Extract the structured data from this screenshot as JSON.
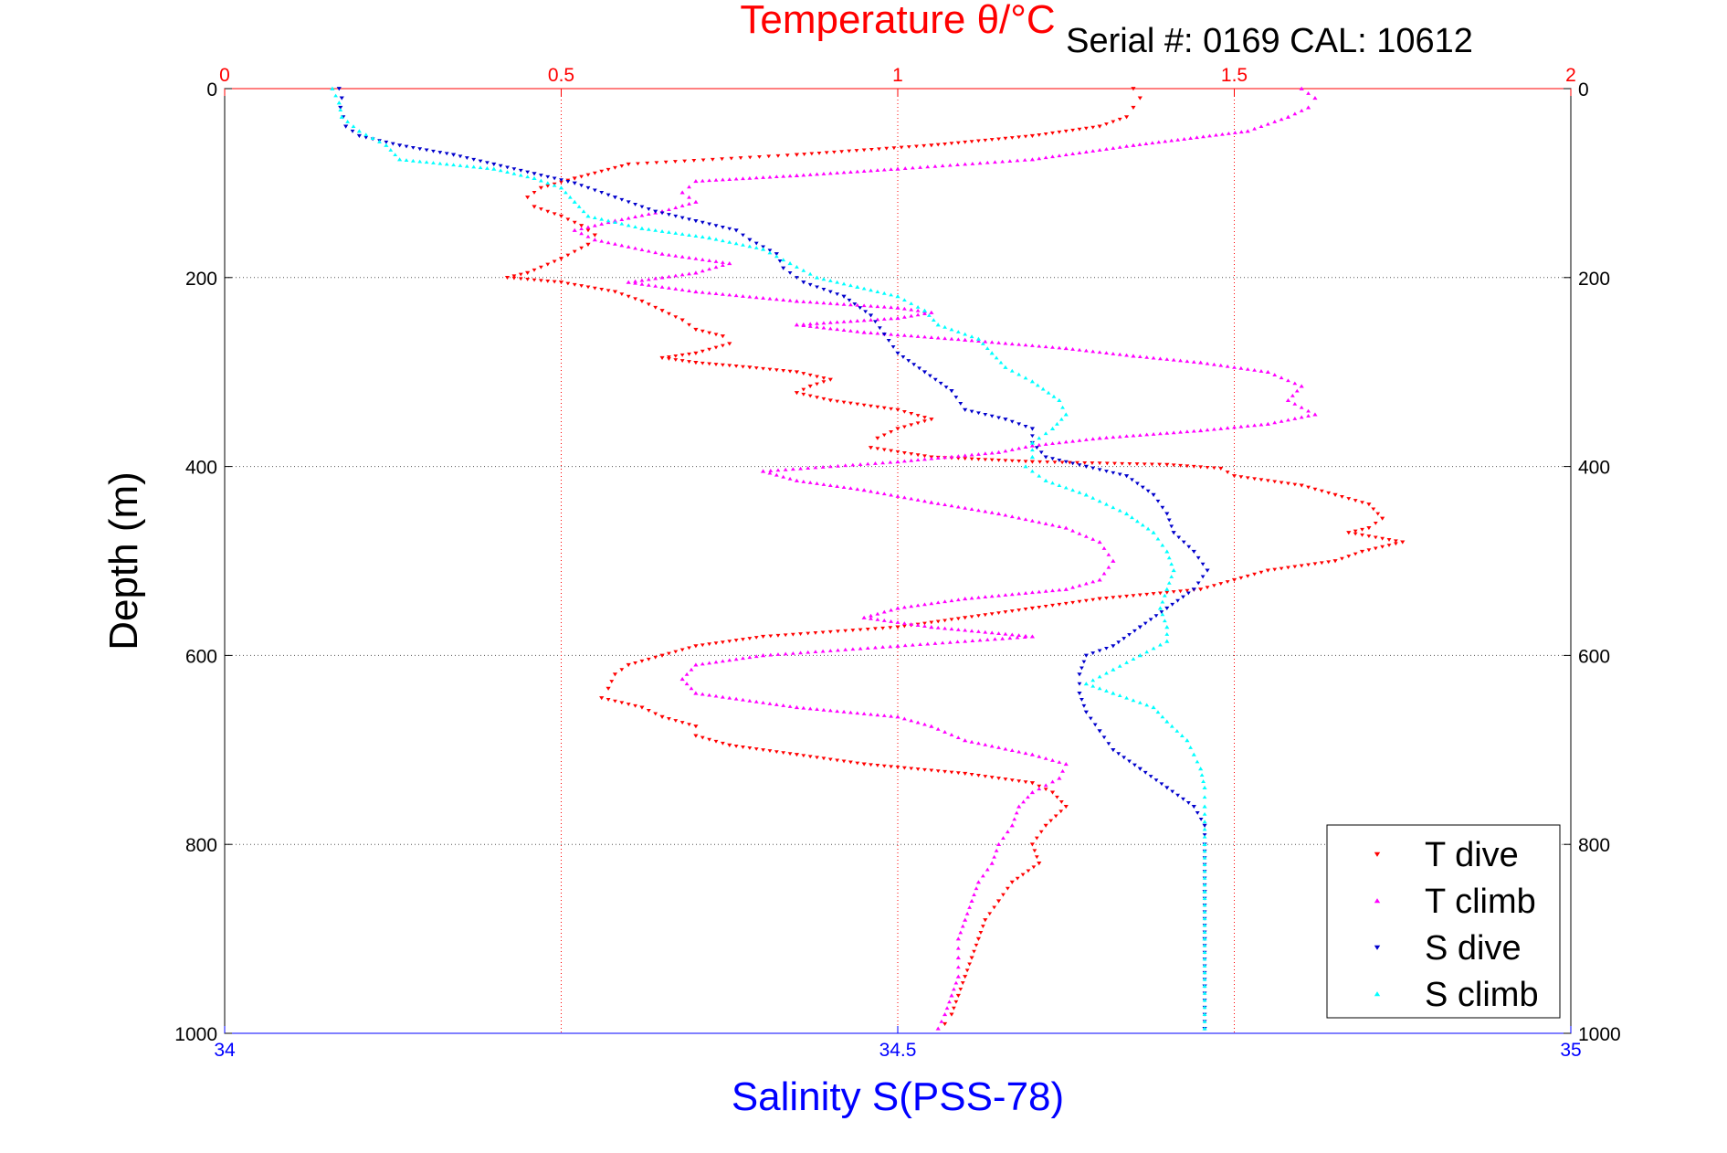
{
  "chart_data": {
    "type": "scatter",
    "top_title": "Temperature θ/°C",
    "serial_label": "Serial #: 0169 CAL: 10612",
    "ylabel": "Depth (m)",
    "xlabel": "Salinity S(PSS-78)",
    "ylim": [
      0,
      1000
    ],
    "y_reversed": true,
    "y_ticks": [
      "0",
      "200",
      "400",
      "600",
      "800",
      "1000"
    ],
    "y_tick_values": [
      0,
      200,
      400,
      600,
      800,
      1000
    ],
    "temp_axis": {
      "range": [
        0,
        2
      ],
      "ticks": [
        "0",
        "0.5",
        "1",
        "1.5",
        "2"
      ],
      "tick_values": [
        0,
        0.5,
        1,
        1.5,
        2
      ],
      "color": "#ff0000"
    },
    "sal_axis": {
      "range": [
        34,
        35
      ],
      "ticks": [
        "34",
        "34.5",
        "35"
      ],
      "tick_values": [
        34,
        34.5,
        35
      ],
      "color": "#0000ff"
    },
    "grid": true,
    "legend_position": "bottom-right",
    "series": [
      {
        "name": "T dive",
        "axis": "temperature",
        "color": "#ff0000",
        "marker": "triangle-down",
        "points": [
          [
            1.35,
            0
          ],
          [
            1.36,
            10
          ],
          [
            1.35,
            20
          ],
          [
            1.34,
            30
          ],
          [
            1.3,
            40
          ],
          [
            1.2,
            50
          ],
          [
            1.05,
            60
          ],
          [
            0.85,
            70
          ],
          [
            0.6,
            80
          ],
          [
            0.52,
            95
          ],
          [
            0.47,
            105
          ],
          [
            0.45,
            115
          ],
          [
            0.46,
            125
          ],
          [
            0.5,
            135
          ],
          [
            0.53,
            145
          ],
          [
            0.55,
            155
          ],
          [
            0.54,
            165
          ],
          [
            0.5,
            180
          ],
          [
            0.45,
            195
          ],
          [
            0.42,
            200
          ],
          [
            0.5,
            205
          ],
          [
            0.58,
            215
          ],
          [
            0.62,
            225
          ],
          [
            0.65,
            235
          ],
          [
            0.68,
            245
          ],
          [
            0.7,
            255
          ],
          [
            0.74,
            262
          ],
          [
            0.75,
            270
          ],
          [
            0.7,
            280
          ],
          [
            0.65,
            285
          ],
          [
            0.7,
            290
          ],
          [
            0.78,
            295
          ],
          [
            0.85,
            300
          ],
          [
            0.9,
            308
          ],
          [
            0.87,
            315
          ],
          [
            0.85,
            322
          ],
          [
            0.9,
            330
          ],
          [
            1.0,
            340
          ],
          [
            1.05,
            350
          ],
          [
            1.0,
            360
          ],
          [
            0.97,
            370
          ],
          [
            0.96,
            380
          ],
          [
            1.05,
            390
          ],
          [
            1.2,
            395
          ],
          [
            1.4,
            398
          ],
          [
            1.48,
            402
          ],
          [
            1.5,
            410
          ],
          [
            1.6,
            420
          ],
          [
            1.65,
            430
          ],
          [
            1.7,
            440
          ],
          [
            1.72,
            455
          ],
          [
            1.7,
            465
          ],
          [
            1.67,
            470
          ],
          [
            1.75,
            480
          ],
          [
            1.69,
            490
          ],
          [
            1.65,
            500
          ],
          [
            1.55,
            510
          ],
          [
            1.5,
            520
          ],
          [
            1.45,
            530
          ],
          [
            1.3,
            540
          ],
          [
            1.2,
            550
          ],
          [
            1.1,
            560
          ],
          [
            1.0,
            570
          ],
          [
            0.8,
            580
          ],
          [
            0.7,
            590
          ],
          [
            0.65,
            600
          ],
          [
            0.6,
            610
          ],
          [
            0.58,
            620
          ],
          [
            0.57,
            635
          ],
          [
            0.56,
            645
          ],
          [
            0.62,
            655
          ],
          [
            0.65,
            665
          ],
          [
            0.7,
            675
          ],
          [
            0.7,
            685
          ],
          [
            0.75,
            695
          ],
          [
            0.85,
            705
          ],
          [
            0.95,
            715
          ],
          [
            1.1,
            725
          ],
          [
            1.2,
            735
          ],
          [
            1.23,
            745
          ],
          [
            1.25,
            760
          ],
          [
            1.22,
            780
          ],
          [
            1.2,
            800
          ],
          [
            1.21,
            820
          ],
          [
            1.17,
            840
          ],
          [
            1.15,
            860
          ],
          [
            1.13,
            880
          ],
          [
            1.12,
            900
          ],
          [
            1.11,
            920
          ],
          [
            1.1,
            940
          ],
          [
            1.09,
            960
          ],
          [
            1.08,
            980
          ],
          [
            1.07,
            990
          ]
        ]
      },
      {
        "name": "T climb",
        "axis": "temperature",
        "color": "#ff00ff",
        "marker": "triangle-up",
        "points": [
          [
            1.6,
            0
          ],
          [
            1.62,
            10
          ],
          [
            1.61,
            20
          ],
          [
            1.58,
            30
          ],
          [
            1.52,
            45
          ],
          [
            1.35,
            60
          ],
          [
            1.2,
            75
          ],
          [
            1.0,
            85
          ],
          [
            0.85,
            92
          ],
          [
            0.7,
            98
          ],
          [
            0.68,
            110
          ],
          [
            0.7,
            120
          ],
          [
            0.65,
            130
          ],
          [
            0.58,
            140
          ],
          [
            0.52,
            150
          ],
          [
            0.55,
            160
          ],
          [
            0.65,
            175
          ],
          [
            0.75,
            185
          ],
          [
            0.7,
            195
          ],
          [
            0.6,
            205
          ],
          [
            0.7,
            215
          ],
          [
            0.85,
            225
          ],
          [
            1.0,
            232
          ],
          [
            1.05,
            237
          ],
          [
            1.0,
            243
          ],
          [
            0.85,
            250
          ],
          [
            0.95,
            258
          ],
          [
            1.1,
            266
          ],
          [
            1.25,
            275
          ],
          [
            1.35,
            283
          ],
          [
            1.45,
            290
          ],
          [
            1.55,
            300
          ],
          [
            1.6,
            315
          ],
          [
            1.58,
            330
          ],
          [
            1.62,
            345
          ],
          [
            1.55,
            355
          ],
          [
            1.45,
            362
          ],
          [
            1.3,
            370
          ],
          [
            1.2,
            378
          ],
          [
            1.15,
            385
          ],
          [
            1.0,
            395
          ],
          [
            0.8,
            405
          ],
          [
            0.85,
            415
          ],
          [
            0.95,
            425
          ],
          [
            1.05,
            438
          ],
          [
            1.15,
            450
          ],
          [
            1.25,
            465
          ],
          [
            1.3,
            480
          ],
          [
            1.32,
            500
          ],
          [
            1.3,
            520
          ],
          [
            1.25,
            530
          ],
          [
            1.1,
            540
          ],
          [
            1.0,
            550
          ],
          [
            0.95,
            560
          ],
          [
            1.05,
            570
          ],
          [
            1.2,
            580
          ],
          [
            1.0,
            590
          ],
          [
            0.8,
            600
          ],
          [
            0.7,
            610
          ],
          [
            0.68,
            625
          ],
          [
            0.7,
            640
          ],
          [
            0.85,
            655
          ],
          [
            1.0,
            665
          ],
          [
            1.05,
            675
          ],
          [
            1.1,
            690
          ],
          [
            1.2,
            705
          ],
          [
            1.25,
            715
          ],
          [
            1.24,
            730
          ],
          [
            1.2,
            745
          ],
          [
            1.18,
            760
          ],
          [
            1.17,
            780
          ],
          [
            1.15,
            800
          ],
          [
            1.14,
            820
          ],
          [
            1.12,
            840
          ],
          [
            1.11,
            860
          ],
          [
            1.1,
            880
          ],
          [
            1.09,
            900
          ],
          [
            1.09,
            920
          ],
          [
            1.09,
            940
          ],
          [
            1.08,
            960
          ],
          [
            1.07,
            980
          ],
          [
            1.06,
            995
          ]
        ]
      },
      {
        "name": "S dive",
        "axis": "salinity",
        "color": "#0000cc",
        "marker": "triangle-down",
        "points": [
          [
            34.085,
            0
          ],
          [
            34.087,
            10
          ],
          [
            34.086,
            20
          ],
          [
            34.088,
            30
          ],
          [
            34.09,
            40
          ],
          [
            34.1,
            50
          ],
          [
            34.13,
            60
          ],
          [
            34.17,
            70
          ],
          [
            34.2,
            80
          ],
          [
            34.23,
            90
          ],
          [
            34.26,
            100
          ],
          [
            34.29,
            115
          ],
          [
            34.32,
            130
          ],
          [
            34.35,
            140
          ],
          [
            34.38,
            150
          ],
          [
            34.39,
            160
          ],
          [
            34.41,
            175
          ],
          [
            34.415,
            190
          ],
          [
            34.43,
            205
          ],
          [
            34.46,
            220
          ],
          [
            34.48,
            240
          ],
          [
            34.49,
            260
          ],
          [
            34.5,
            280
          ],
          [
            34.52,
            300
          ],
          [
            34.54,
            320
          ],
          [
            34.55,
            340
          ],
          [
            34.58,
            350
          ],
          [
            34.6,
            360
          ],
          [
            34.6,
            375
          ],
          [
            34.61,
            390
          ],
          [
            34.64,
            400
          ],
          [
            34.67,
            410
          ],
          [
            34.69,
            430
          ],
          [
            34.7,
            450
          ],
          [
            34.705,
            470
          ],
          [
            34.72,
            490
          ],
          [
            34.73,
            510
          ],
          [
            34.72,
            530
          ],
          [
            34.7,
            550
          ],
          [
            34.68,
            570
          ],
          [
            34.66,
            590
          ],
          [
            34.64,
            600
          ],
          [
            34.635,
            620
          ],
          [
            34.635,
            640
          ],
          [
            34.64,
            660
          ],
          [
            34.65,
            680
          ],
          [
            34.66,
            700
          ],
          [
            34.68,
            720
          ],
          [
            34.7,
            740
          ],
          [
            34.72,
            760
          ],
          [
            34.728,
            780
          ],
          [
            34.728,
            800
          ],
          [
            34.728,
            850
          ],
          [
            34.728,
            900
          ],
          [
            34.728,
            950
          ],
          [
            34.728,
            995
          ]
        ]
      },
      {
        "name": "S climb",
        "axis": "salinity",
        "color": "#00ffff",
        "marker": "triangle-up",
        "points": [
          [
            34.08,
            0
          ],
          [
            34.085,
            15
          ],
          [
            34.087,
            30
          ],
          [
            34.1,
            45
          ],
          [
            34.12,
            60
          ],
          [
            34.13,
            75
          ],
          [
            34.2,
            85
          ],
          [
            34.23,
            95
          ],
          [
            34.25,
            105
          ],
          [
            34.26,
            120
          ],
          [
            34.27,
            135
          ],
          [
            34.31,
            148
          ],
          [
            34.36,
            158
          ],
          [
            34.4,
            170
          ],
          [
            34.42,
            185
          ],
          [
            34.44,
            200
          ],
          [
            34.47,
            210
          ],
          [
            34.5,
            220
          ],
          [
            34.52,
            235
          ],
          [
            34.53,
            250
          ],
          [
            34.56,
            265
          ],
          [
            34.57,
            280
          ],
          [
            34.58,
            295
          ],
          [
            34.6,
            310
          ],
          [
            34.62,
            330
          ],
          [
            34.625,
            345
          ],
          [
            34.615,
            360
          ],
          [
            34.6,
            375
          ],
          [
            34.6,
            390
          ],
          [
            34.595,
            400
          ],
          [
            34.61,
            415
          ],
          [
            34.64,
            430
          ],
          [
            34.67,
            450
          ],
          [
            34.69,
            470
          ],
          [
            34.7,
            490
          ],
          [
            34.705,
            510
          ],
          [
            34.7,
            530
          ],
          [
            34.695,
            550
          ],
          [
            34.7,
            570
          ],
          [
            34.7,
            585
          ],
          [
            34.68,
            600
          ],
          [
            34.66,
            615
          ],
          [
            34.64,
            630
          ],
          [
            34.66,
            640
          ],
          [
            34.69,
            655
          ],
          [
            34.7,
            670
          ],
          [
            34.715,
            690
          ],
          [
            34.72,
            705
          ],
          [
            34.725,
            720
          ],
          [
            34.728,
            740
          ],
          [
            34.728,
            760
          ],
          [
            34.728,
            800
          ],
          [
            34.728,
            850
          ],
          [
            34.728,
            900
          ],
          [
            34.728,
            950
          ],
          [
            34.728,
            995
          ]
        ]
      }
    ]
  }
}
